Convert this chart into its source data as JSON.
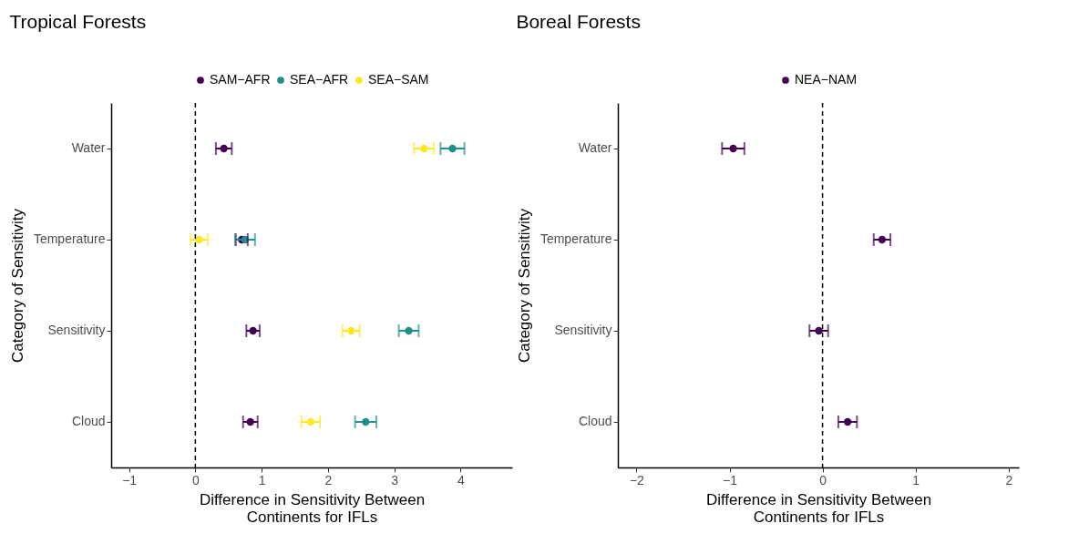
{
  "chart_data": [
    {
      "type": "scatter",
      "title": "Tropical Forests",
      "xlabel": "Difference in Sensitivity Between\nContinents for IFLs",
      "ylabel": "Category of Sensitivity",
      "orientation": "horizontal",
      "categories": [
        "Water",
        "Temperature",
        "Sensitivity",
        "Cloud"
      ],
      "marker": "circle",
      "legend": "top",
      "grid": false,
      "xlim": [
        -1.27,
        4.78
      ],
      "xticks": [
        -1,
        0,
        1,
        2,
        3,
        4
      ],
      "series": [
        {
          "name": "SAM−AFR",
          "color": "#440154",
          "values": [
            0.43,
            0.7,
            0.87,
            0.83
          ],
          "errors": [
            0.12,
            0.09,
            0.1,
            0.11
          ]
        },
        {
          "name": "SEA−AFR",
          "color": "#21908c",
          "values": [
            3.88,
            0.75,
            3.22,
            2.57
          ],
          "errors": [
            0.18,
            0.15,
            0.15,
            0.16
          ]
        },
        {
          "name": "SEA−SAM",
          "color": "#fde725",
          "values": [
            3.45,
            0.06,
            2.35,
            1.74
          ],
          "errors": [
            0.15,
            0.13,
            0.13,
            0.14
          ]
        }
      ],
      "ref_lines": [
        {
          "axis": "x",
          "value": 0,
          "line_style": "dashed",
          "color": "#000000"
        }
      ]
    },
    {
      "type": "scatter",
      "title": "Boreal Forests",
      "xlabel": "Difference in Sensitivity Between\nContinents for IFLs",
      "ylabel": "Category of Sensitivity",
      "orientation": "horizontal",
      "categories": [
        "Water",
        "Temperature",
        "Sensitivity",
        "Cloud"
      ],
      "marker": "circle",
      "legend": "top",
      "grid": false,
      "xlim": [
        -2.2,
        2.11
      ],
      "xticks": [
        -2,
        -1,
        0,
        1,
        2
      ],
      "series": [
        {
          "name": "NEA−NAM",
          "color": "#440154",
          "values": [
            -0.96,
            0.64,
            -0.04,
            0.27
          ],
          "errors": [
            0.12,
            0.09,
            0.1,
            0.1
          ]
        }
      ],
      "ref_lines": [
        {
          "axis": "x",
          "value": 0,
          "line_style": "dashed",
          "color": "#000000"
        }
      ]
    }
  ]
}
